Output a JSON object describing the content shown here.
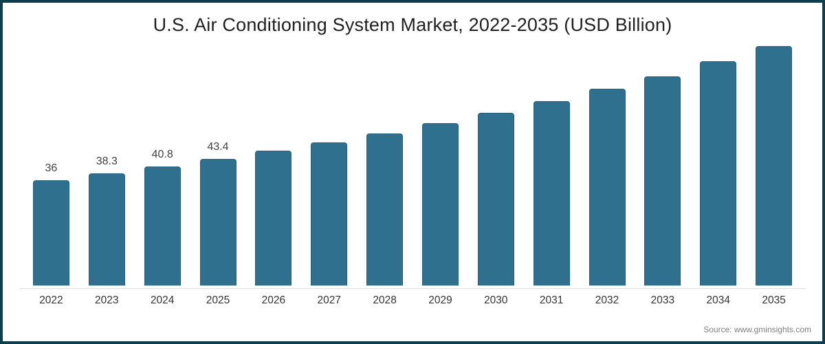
{
  "title": "U.S. Air Conditioning System Market, 2022-2035 (USD Billion)",
  "source": "Source: www.gminsights.com",
  "frame": {
    "border_color": "#0e3d4e",
    "background_color": "#ffffff"
  },
  "chart_data": {
    "type": "bar",
    "title": "U.S. Air Conditioning System Market, 2022-2035 (USD Billion)",
    "unit": "USD Billion",
    "categories": [
      "2022",
      "2023",
      "2024",
      "2025",
      "2026",
      "2027",
      "2028",
      "2029",
      "2030",
      "2031",
      "2032",
      "2033",
      "2034",
      "2035"
    ],
    "values": [
      36,
      38.3,
      40.8,
      43.4,
      46.2,
      48.9,
      52.0,
      55.5,
      59.0,
      63.1,
      67.3,
      71.5,
      76.7,
      81.9
    ],
    "data_labels": [
      "36",
      "38.3",
      "40.8",
      "43.4",
      "",
      "",
      "",
      "",
      "",
      "",
      "",
      "",
      "",
      ""
    ],
    "ylim": [
      0,
      85
    ],
    "grid": false,
    "legend": false,
    "bar_color": "#30708f",
    "bar_border_color": "#26607d",
    "axis_line_color": "#d9d9d9",
    "value_label_color": "#3f3f3f",
    "tick_label_color": "#333333"
  }
}
